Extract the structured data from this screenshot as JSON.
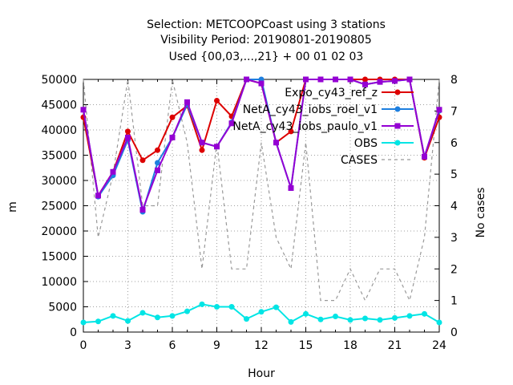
{
  "chart_data": {
    "type": "line",
    "title_lines": [
      "Selection: METCOOPCoast using     3 stations",
      "Visibility   Period: 20190801-20190805",
      "Used {00,03,...,21} + 00 01 02 03"
    ],
    "xlabel": "Hour",
    "ylabel": "m",
    "y2label": "No cases",
    "xlim": [
      0,
      24
    ],
    "ylim": [
      0,
      50000
    ],
    "y2lim": [
      0,
      8
    ],
    "xticks": [
      0,
      3,
      6,
      9,
      12,
      15,
      18,
      21,
      24
    ],
    "yticks": [
      0,
      5000,
      10000,
      15000,
      20000,
      25000,
      30000,
      35000,
      40000,
      45000,
      50000
    ],
    "y2ticks": [
      0,
      1,
      2,
      3,
      4,
      5,
      6,
      7,
      8
    ],
    "grid": true,
    "legend_position": "top-right",
    "x": [
      0,
      1,
      2,
      3,
      4,
      5,
      6,
      7,
      8,
      9,
      10,
      11,
      12,
      13,
      14,
      15,
      16,
      17,
      18,
      19,
      20,
      21,
      22,
      23,
      24
    ],
    "series": [
      {
        "name": "Expo_cy43_ref_z",
        "color": "#dd0000",
        "marker": "circle",
        "axis": "y",
        "values": [
          42500,
          27000,
          31700,
          39700,
          34000,
          36000,
          42500,
          44800,
          36000,
          45800,
          42700,
          50000,
          49200,
          37500,
          39700,
          50000,
          50000,
          50000,
          50000,
          50000,
          50000,
          50000,
          50000,
          34500,
          42500
        ]
      },
      {
        "name": "NetA_cy43_iobs_roel_v1",
        "color": "#1e7fdf",
        "marker": "circle",
        "axis": "y",
        "values": [
          44000,
          26800,
          31000,
          38000,
          23800,
          33500,
          38500,
          45000,
          37500,
          36700,
          41500,
          50000,
          50000,
          37500,
          28500,
          50000,
          50000,
          50000,
          50000,
          49000,
          49500,
          49700,
          50000,
          34700,
          43800
        ]
      },
      {
        "name": "NetA_cy43_iobs_paulo_v1",
        "color": "#9400d3",
        "marker": "square",
        "axis": "y",
        "values": [
          44000,
          27000,
          31700,
          38500,
          24200,
          32000,
          38500,
          45500,
          37500,
          36700,
          41300,
          50000,
          49200,
          37500,
          28500,
          50000,
          50000,
          50000,
          50000,
          49000,
          49500,
          49700,
          50000,
          34700,
          44000
        ]
      },
      {
        "name": "OBS",
        "color": "#00e5e5",
        "marker": "circle",
        "axis": "y",
        "values": [
          1900,
          2100,
          3200,
          2200,
          3800,
          2900,
          3200,
          4100,
          5500,
          5000,
          5000,
          2600,
          4000,
          4900,
          2000,
          3600,
          2500,
          3100,
          2400,
          2700,
          2400,
          2800,
          3200,
          3600,
          1900
        ]
      },
      {
        "name": "CASES",
        "color": "#999999",
        "marker": "none",
        "dash": "4,4",
        "axis": "y2",
        "values": [
          8,
          3,
          5,
          8,
          4,
          4,
          8,
          6,
          2,
          6,
          2,
          2,
          6,
          3,
          2,
          6,
          1,
          1,
          2,
          1,
          2,
          2,
          1,
          3,
          8
        ]
      }
    ]
  }
}
